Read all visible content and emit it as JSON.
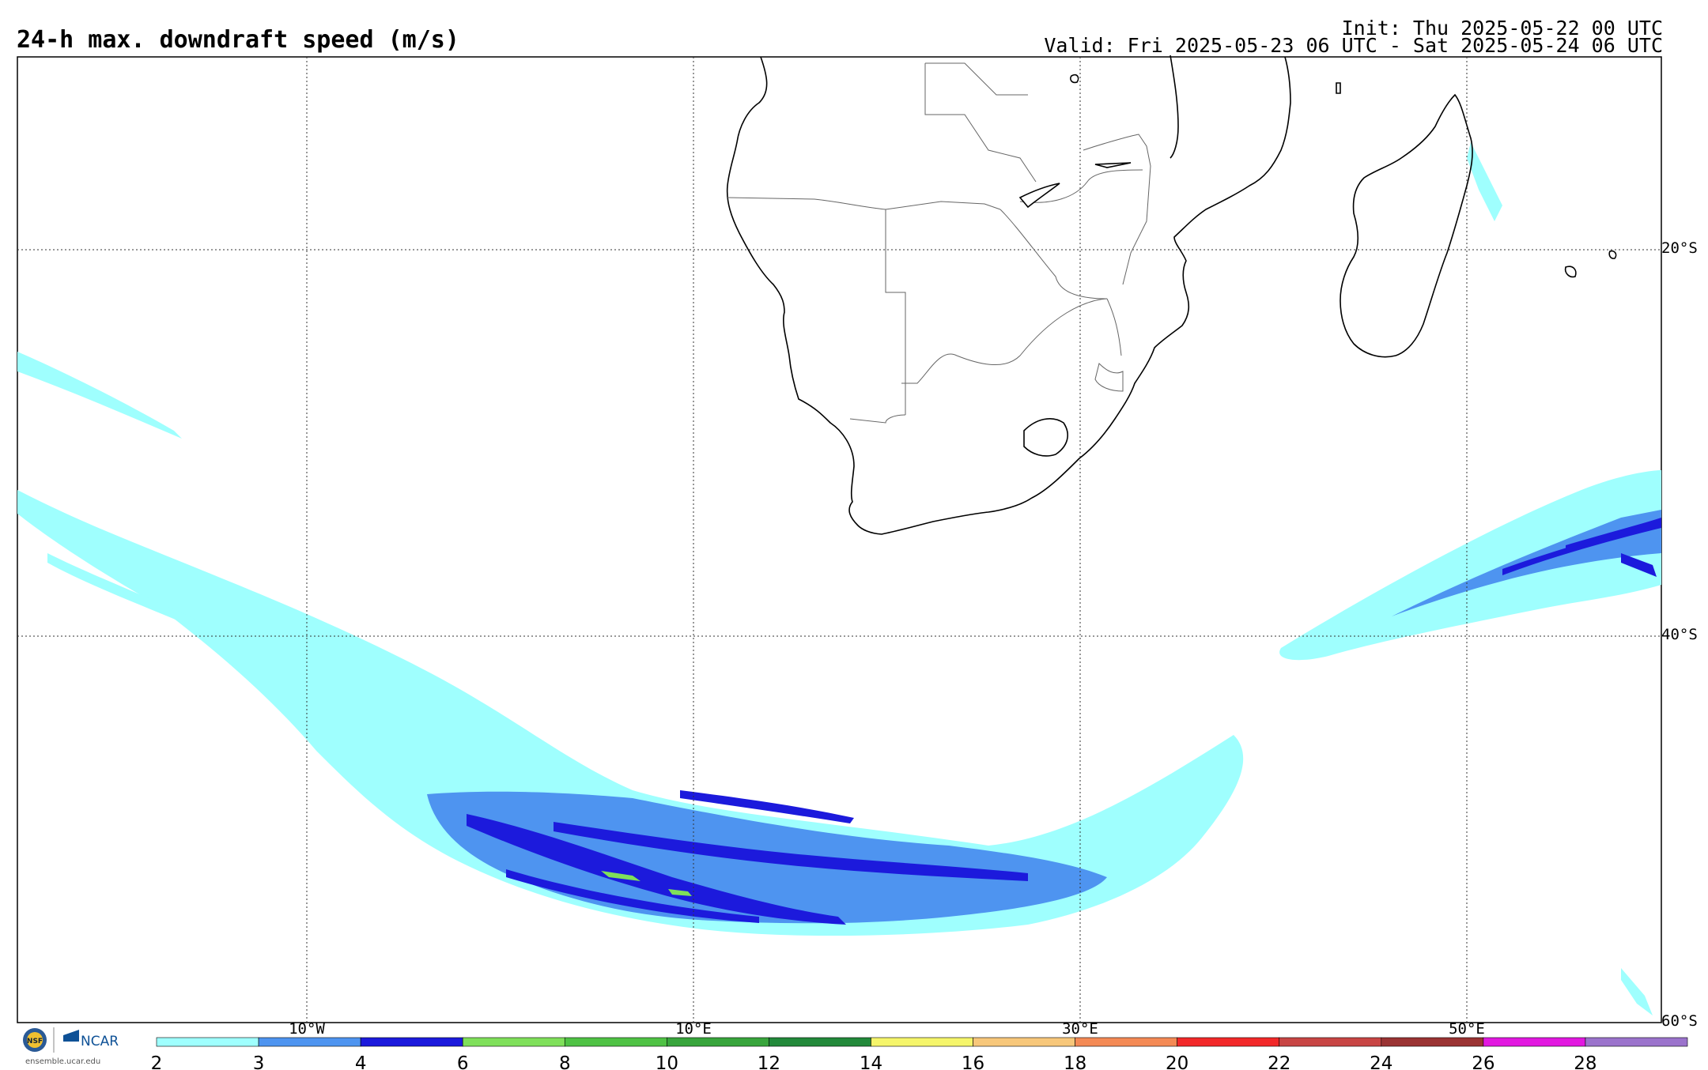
{
  "header": {
    "title": "24-h max. downdraft speed (m/s)",
    "init": "Init: Thu 2025-05-22 00 UTC",
    "valid": "Valid: Fri 2025-05-23 06 UTC - Sat 2025-05-24 06 UTC"
  },
  "map": {
    "projection": "cylindrical equidistant",
    "lon_range": [
      -25,
      60
    ],
    "lat_range": [
      -60,
      -10
    ],
    "lon_labels": [
      "10°W",
      "10°E",
      "30°E",
      "50°E"
    ],
    "lat_labels": [
      "20°S",
      "40°S",
      "60°S"
    ],
    "regions": [
      "Southern Africa",
      "Madagascar",
      "South Atlantic Ocean",
      "Southern Indian Ocean"
    ]
  },
  "colorbar": {
    "levels": [
      "2",
      "3",
      "4",
      "6",
      "8",
      "10",
      "12",
      "14",
      "16",
      "18",
      "20",
      "22",
      "24",
      "26",
      "28"
    ],
    "colors": [
      "#9ffffe",
      "#4e94f0",
      "#1c1adc",
      "#7fe05a",
      "#4fc244",
      "#38a53c",
      "#22893a",
      "#f5f56a",
      "#f7c77a",
      "#f48a55",
      "#f22829",
      "#c84544",
      "#9a3333",
      "#e218e0",
      "#9b73cc"
    ]
  },
  "logo": {
    "nsf": "NSF",
    "ncar": "NCAR",
    "url": "ensemble.ucar.edu"
  }
}
